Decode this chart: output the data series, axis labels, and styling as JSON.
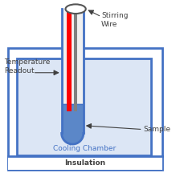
{
  "bg_color": "#ffffff",
  "blue": "#4472c4",
  "dark_blue": "#1f3864",
  "label_color": "#404040",
  "red_color": "#ff0000",
  "gray_color": "#808080",
  "liquid_color": "#5b87c8",
  "tube_fill": "#f0f0f0",
  "inner_fill": "#dce6f5",
  "font_size": 6.5,
  "cooling_text": "Cooling Chamber",
  "insulation_text": "Insulation",
  "sample_text": "Sample",
  "temp_line1": "Temperature",
  "temp_line2": "Readout",
  "stirring_line1": "Stirring",
  "stirring_line2": "Wire"
}
